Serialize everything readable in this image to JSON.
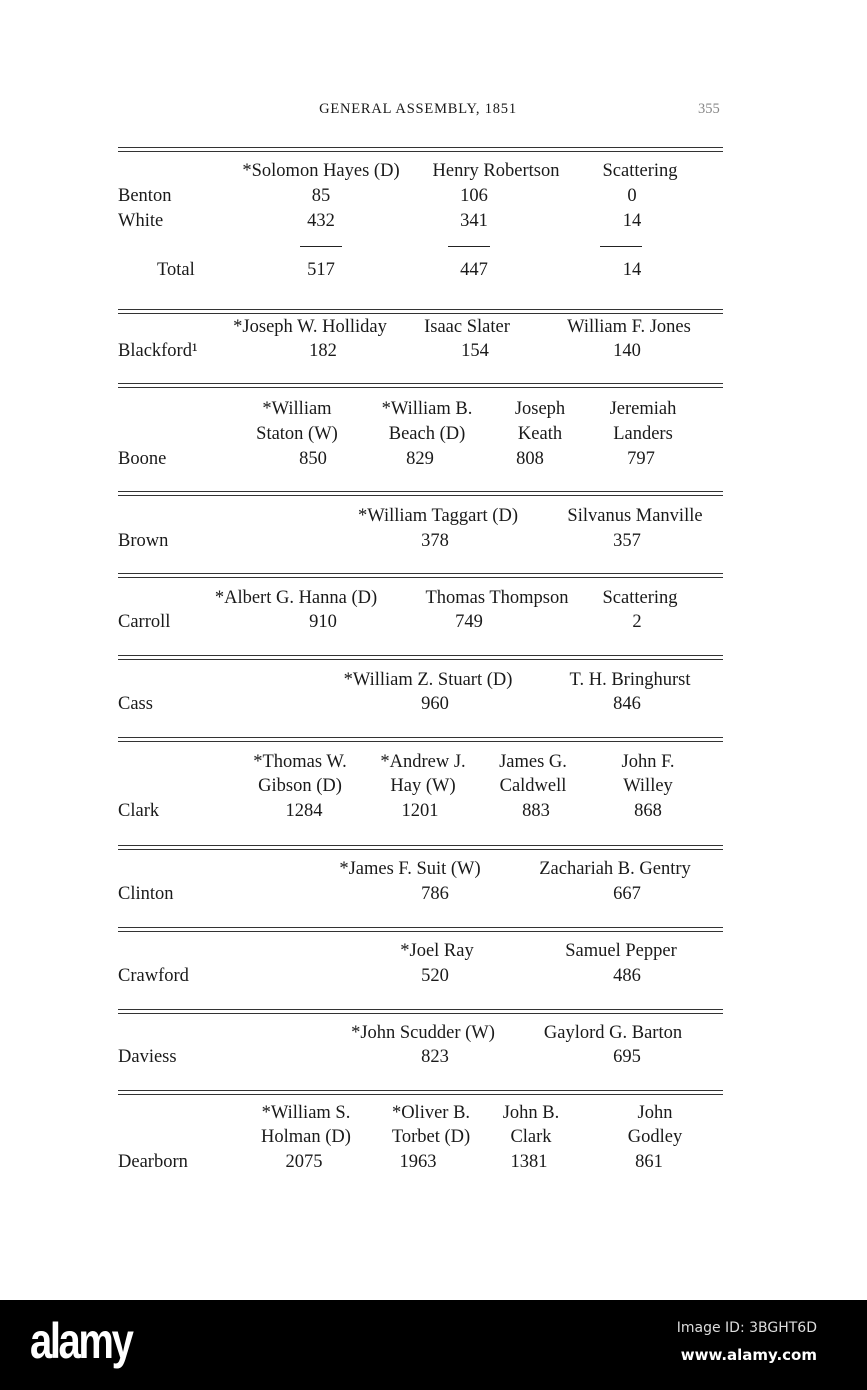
{
  "header": {
    "title": "GENERAL ASSEMBLY, 1851",
    "page": "355"
  },
  "sections": [
    {
      "candidates": [
        [
          "*Solomon Hayes (D)"
        ],
        [
          "Henry Robertson"
        ],
        [
          "Scattering"
        ]
      ],
      "rows": [
        {
          "label": "Benton",
          "values": [
            "85",
            "106",
            "0"
          ]
        },
        {
          "label": "White",
          "values": [
            "432",
            "341",
            "14"
          ]
        }
      ],
      "total": {
        "label": "Total",
        "values": [
          "517",
          "447",
          "14"
        ]
      }
    },
    {
      "candidates": [
        [
          "*Joseph W. Holliday"
        ],
        [
          "Isaac Slater"
        ],
        [
          "William F. Jones"
        ]
      ],
      "rows": [
        {
          "label": "Blackford¹",
          "values": [
            "182",
            "154",
            "140"
          ]
        }
      ]
    },
    {
      "candidates": [
        [
          "*William",
          "Staton (W)"
        ],
        [
          "*William B.",
          "Beach (D)"
        ],
        [
          "Joseph",
          "Keath"
        ],
        [
          "Jeremiah",
          "Landers"
        ]
      ],
      "rows": [
        {
          "label": "Boone",
          "values": [
            "850",
            "829",
            "808",
            "797"
          ]
        }
      ]
    },
    {
      "candidates": [
        [
          "*William Taggart (D)"
        ],
        [
          "Silvanus Manville"
        ]
      ],
      "rows": [
        {
          "label": "Brown",
          "values": [
            "378",
            "357"
          ]
        }
      ]
    },
    {
      "candidates": [
        [
          "*Albert G. Hanna (D)"
        ],
        [
          "Thomas Thompson"
        ],
        [
          "Scattering"
        ]
      ],
      "rows": [
        {
          "label": "Carroll",
          "values": [
            "910",
            "749",
            "2"
          ]
        }
      ]
    },
    {
      "candidates": [
        [
          "*William Z. Stuart (D)"
        ],
        [
          "T. H. Bringhurst"
        ]
      ],
      "rows": [
        {
          "label": "Cass",
          "values": [
            "960",
            "846"
          ]
        }
      ]
    },
    {
      "candidates": [
        [
          "*Thomas W.",
          "Gibson (D)"
        ],
        [
          "*Andrew J.",
          "Hay (W)"
        ],
        [
          "James G.",
          "Caldwell"
        ],
        [
          "John F.",
          "Willey"
        ]
      ],
      "rows": [
        {
          "label": "Clark",
          "values": [
            "1284",
            "1201",
            "883",
            "868"
          ]
        }
      ]
    },
    {
      "candidates": [
        [
          "*James F. Suit (W)"
        ],
        [
          "Zachariah B. Gentry"
        ]
      ],
      "rows": [
        {
          "label": "Clinton",
          "values": [
            "786",
            "667"
          ]
        }
      ]
    },
    {
      "candidates": [
        [
          "*Joel Ray"
        ],
        [
          "Samuel Pepper"
        ]
      ],
      "rows": [
        {
          "label": "Crawford",
          "values": [
            "520",
            "486"
          ]
        }
      ]
    },
    {
      "candidates": [
        [
          "*John Scudder (W)"
        ],
        [
          "Gaylord G. Barton"
        ]
      ],
      "rows": [
        {
          "label": "Daviess",
          "values": [
            "823",
            "695"
          ]
        }
      ]
    },
    {
      "candidates": [
        [
          "*William S.",
          "Holman (D)"
        ],
        [
          "*Oliver B.",
          "Torbet (D)"
        ],
        [
          "John B.",
          "Clark"
        ],
        [
          "John",
          "Godley"
        ]
      ],
      "rows": [
        {
          "label": "Dearborn",
          "values": [
            "2075",
            "1963",
            "1381",
            "861"
          ]
        }
      ]
    }
  ],
  "watermark": {
    "logo": "alamy",
    "image_id": "Image ID: 3BGHT6D",
    "site": "www.alamy.com"
  }
}
